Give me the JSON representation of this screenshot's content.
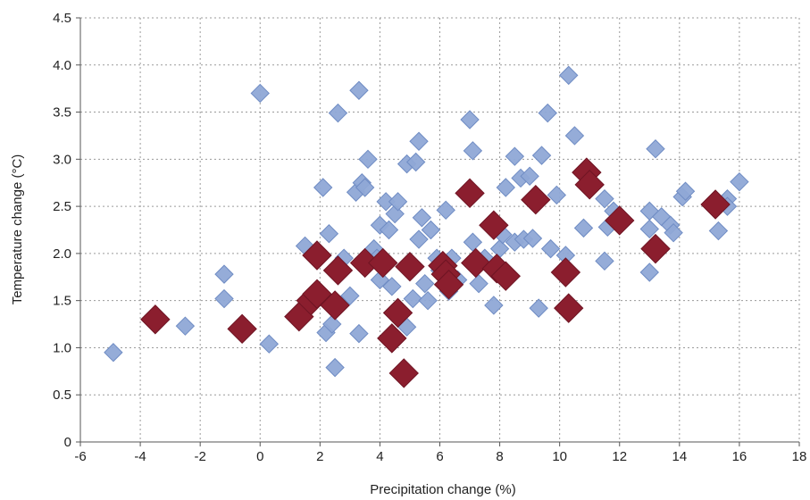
{
  "chart_data": {
    "type": "scatter",
    "title": "",
    "xlabel": "Precipitation change (%)",
    "ylabel": "Temperature change (°C)",
    "xlim": [
      -6,
      18
    ],
    "ylim": [
      0,
      4.5
    ],
    "x_ticks": [
      "-6",
      "-4",
      "-2",
      "0",
      "2",
      "4",
      "6",
      "8",
      "10",
      "12",
      "14",
      "16",
      "18"
    ],
    "y_ticks": [
      "0",
      "0.5",
      "1.0",
      "1.5",
      "2.0",
      "2.5",
      "3.0",
      "3.5",
      "4.0",
      "4.5"
    ],
    "grid": true,
    "marker": "diamond",
    "series": [
      {
        "color": "#8fa8d6",
        "stroke": "#6f8cc4",
        "points": [
          [
            -4.9,
            0.95
          ],
          [
            -2.5,
            1.23
          ],
          [
            -1.2,
            1.78
          ],
          [
            -1.2,
            1.52
          ],
          [
            0.0,
            3.7
          ],
          [
            0.3,
            1.04
          ],
          [
            1.5,
            2.08
          ],
          [
            2.1,
            2.7
          ],
          [
            2.2,
            1.16
          ],
          [
            2.3,
            2.21
          ],
          [
            2.4,
            1.25
          ],
          [
            2.5,
            0.79
          ],
          [
            2.6,
            3.49
          ],
          [
            2.8,
            1.95
          ],
          [
            3.0,
            1.55
          ],
          [
            3.2,
            2.65
          ],
          [
            3.3,
            3.73
          ],
          [
            3.3,
            1.15
          ],
          [
            3.4,
            2.75
          ],
          [
            3.5,
            2.7
          ],
          [
            3.6,
            3.0
          ],
          [
            3.8,
            2.05
          ],
          [
            3.9,
            1.95
          ],
          [
            4.0,
            1.72
          ],
          [
            4.0,
            2.3
          ],
          [
            4.2,
            2.55
          ],
          [
            4.3,
            2.25
          ],
          [
            4.4,
            1.65
          ],
          [
            4.5,
            2.42
          ],
          [
            4.6,
            2.55
          ],
          [
            4.9,
            1.22
          ],
          [
            4.9,
            2.95
          ],
          [
            5.1,
            1.52
          ],
          [
            5.2,
            2.97
          ],
          [
            5.3,
            2.15
          ],
          [
            5.3,
            3.19
          ],
          [
            5.4,
            2.38
          ],
          [
            5.5,
            1.68
          ],
          [
            5.6,
            1.5
          ],
          [
            5.7,
            2.25
          ],
          [
            5.9,
            1.95
          ],
          [
            6.0,
            1.82
          ],
          [
            6.2,
            2.46
          ],
          [
            6.3,
            1.6
          ],
          [
            6.4,
            1.95
          ],
          [
            6.6,
            1.72
          ],
          [
            7.0,
            3.42
          ],
          [
            7.1,
            3.09
          ],
          [
            7.1,
            2.12
          ],
          [
            7.3,
            1.68
          ],
          [
            7.5,
            1.95
          ],
          [
            7.8,
            1.45
          ],
          [
            8.0,
            2.05
          ],
          [
            8.1,
            2.2
          ],
          [
            8.2,
            2.7
          ],
          [
            8.5,
            3.03
          ],
          [
            8.5,
            2.12
          ],
          [
            8.7,
            2.8
          ],
          [
            8.8,
            2.15
          ],
          [
            9.0,
            2.82
          ],
          [
            9.1,
            2.16
          ],
          [
            9.3,
            1.42
          ],
          [
            9.4,
            3.04
          ],
          [
            9.6,
            3.49
          ],
          [
            9.7,
            2.05
          ],
          [
            9.9,
            2.62
          ],
          [
            10.2,
            1.98
          ],
          [
            10.3,
            3.89
          ],
          [
            10.5,
            3.25
          ],
          [
            10.8,
            2.27
          ],
          [
            11.5,
            1.92
          ],
          [
            11.5,
            2.58
          ],
          [
            11.6,
            2.28
          ],
          [
            11.8,
            2.45
          ],
          [
            13.0,
            2.26
          ],
          [
            13.0,
            2.45
          ],
          [
            13.0,
            1.8
          ],
          [
            13.2,
            3.11
          ],
          [
            13.4,
            2.39
          ],
          [
            13.7,
            2.3
          ],
          [
            13.8,
            2.22
          ],
          [
            14.1,
            2.6
          ],
          [
            14.2,
            2.66
          ],
          [
            15.2,
            2.47
          ],
          [
            15.3,
            2.24
          ],
          [
            15.6,
            2.58
          ],
          [
            15.6,
            2.5
          ],
          [
            16.0,
            2.76
          ]
        ]
      },
      {
        "color": "#8b1e2e",
        "stroke": "#6e1423",
        "points": [
          [
            -3.5,
            1.3
          ],
          [
            -0.6,
            1.2
          ],
          [
            1.3,
            1.33
          ],
          [
            1.7,
            1.5
          ],
          [
            1.9,
            1.57
          ],
          [
            1.9,
            1.98
          ],
          [
            2.5,
            1.45
          ],
          [
            2.6,
            1.82
          ],
          [
            3.5,
            1.9
          ],
          [
            4.1,
            1.9
          ],
          [
            4.4,
            1.1
          ],
          [
            4.6,
            1.37
          ],
          [
            4.8,
            0.73
          ],
          [
            5.0,
            1.86
          ],
          [
            6.1,
            1.87
          ],
          [
            6.2,
            1.78
          ],
          [
            6.3,
            1.67
          ],
          [
            7.0,
            2.64
          ],
          [
            7.2,
            1.9
          ],
          [
            7.8,
            2.3
          ],
          [
            7.9,
            1.84
          ],
          [
            8.2,
            1.76
          ],
          [
            9.2,
            2.57
          ],
          [
            10.2,
            1.8
          ],
          [
            10.3,
            1.42
          ],
          [
            10.9,
            2.86
          ],
          [
            11.0,
            2.73
          ],
          [
            12.0,
            2.35
          ],
          [
            13.2,
            2.05
          ],
          [
            15.2,
            2.52
          ]
        ]
      }
    ]
  }
}
